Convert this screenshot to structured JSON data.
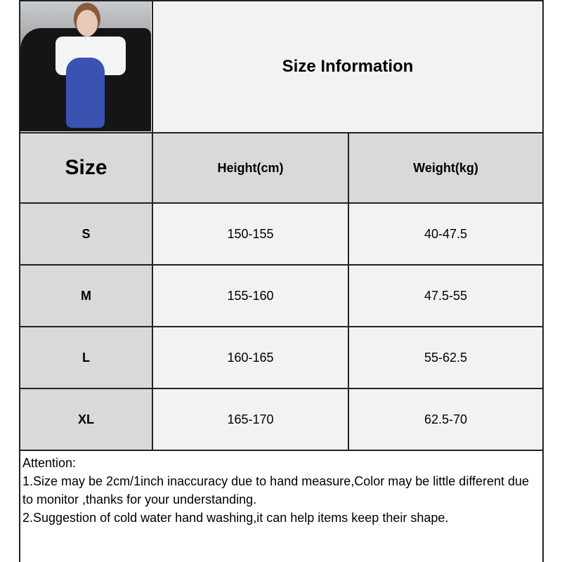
{
  "title": "Size Information",
  "table": {
    "headers": [
      "Size",
      "Height(cm)",
      "Weight(kg)"
    ],
    "rows": [
      {
        "size": "S",
        "height": "150-155",
        "weight": "40-47.5"
      },
      {
        "size": "M",
        "height": "155-160",
        "weight": "47.5-55"
      },
      {
        "size": "L",
        "height": "160-165",
        "weight": "55-62.5"
      },
      {
        "size": "XL",
        "height": "165-170",
        "weight": "62.5-70"
      }
    ]
  },
  "notes": {
    "heading": "Attention:",
    "lines": [
      "1.Size may be 2cm/1inch inaccuracy due to hand measure,Color may be little different due to monitor ,thanks for your understanding.",
      "2.Suggestion of cold water hand washing,it can help items keep their shape."
    ]
  },
  "colors": {
    "header_bg": "#d9d9d9",
    "cell_bg": "#f2f2f2",
    "border": "#222222"
  }
}
